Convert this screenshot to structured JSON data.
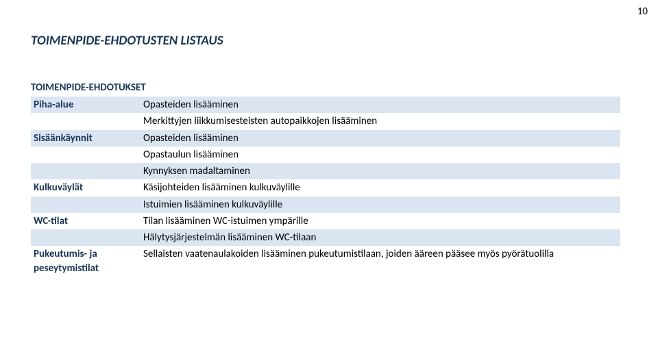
{
  "page": {
    "number": "10",
    "title": "TOIMENPIDE-EHDOTUSTEN LISTAUS",
    "tableHeading": "TOIMENPIDE-EHDOTUKSET"
  },
  "rows": [
    {
      "label": "Piha-alue",
      "content": "Opasteiden lisääminen",
      "shaded": true
    },
    {
      "label": "",
      "content": "Merkittyjen liikkumisesteisten autopaikkojen lisääminen",
      "shaded": false
    },
    {
      "label": "Sisäänkäynnit",
      "content": "Opasteiden lisääminen",
      "shaded": true
    },
    {
      "label": "",
      "content": "Opastaulun lisääminen",
      "shaded": false
    },
    {
      "label": "",
      "content": "Kynnyksen madaltaminen",
      "shaded": true
    },
    {
      "label": "Kulkuväylät",
      "content": "Käsijohteiden lisääminen kulkuväylille",
      "shaded": false
    },
    {
      "label": "",
      "content": "Istuimien lisääminen kulkuväylille",
      "shaded": true
    },
    {
      "label": "WC-tilat",
      "content": "Tilan lisääminen WC-istuimen ympärille",
      "shaded": false
    },
    {
      "label": "",
      "content": "Hälytysjärjestelmän lisääminen WC-tilaan",
      "shaded": true
    },
    {
      "label": "Pukeutumis- ja peseytymistilat",
      "content": "Sellaisten vaatenaulakoiden lisääminen pukeutumistilaan, joiden ääreen pääsee myös pyörätuolilla",
      "shaded": false
    }
  ]
}
